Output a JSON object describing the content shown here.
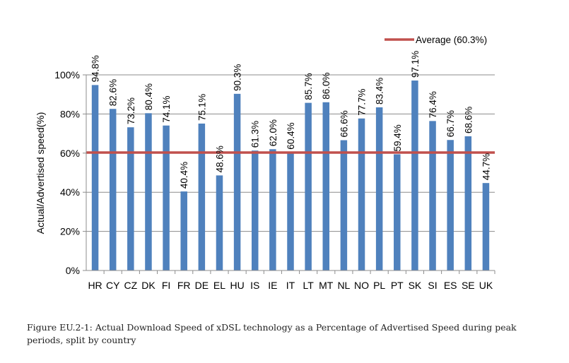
{
  "chart_data": {
    "type": "bar",
    "categories": [
      "HR",
      "CY",
      "CZ",
      "DK",
      "FI",
      "FR",
      "DE",
      "EL",
      "HU",
      "IS",
      "IE",
      "IT",
      "LT",
      "MT",
      "NL",
      "NO",
      "PL",
      "PT",
      "SK",
      "SI",
      "ES",
      "SE",
      "UK"
    ],
    "values": [
      94.8,
      82.6,
      73.2,
      80.4,
      74.1,
      40.4,
      75.1,
      48.6,
      90.3,
      61.3,
      62.0,
      60.4,
      85.7,
      86.0,
      66.6,
      77.7,
      83.4,
      59.4,
      97.1,
      76.4,
      66.7,
      68.6,
      44.7
    ],
    "value_labels": [
      "94.8%",
      "82.6%",
      "73.2%",
      "80.4%",
      "74.1%",
      "40.4%",
      "75.1%",
      "48.6%",
      "90.3%",
      "61.3%",
      "62.0%",
      "60.4%",
      "85.7%",
      "86.0%",
      "66.6%",
      "77.7%",
      "83.4%",
      "59.4%",
      "97.1%",
      "76.4%",
      "66.7%",
      "68.6%",
      "44.7%"
    ],
    "ylabel": "Actual/Advertised speed(%)",
    "xlabel": "",
    "ylim": [
      0,
      100
    ],
    "yticks": [
      0,
      20,
      40,
      60,
      80,
      100
    ],
    "ytick_labels": [
      "0%",
      "20%",
      "40%",
      "60%",
      "80%",
      "100%"
    ],
    "grid": true,
    "reference_line": {
      "label": "Average (60.3%)",
      "value": 60.3,
      "color": "#c0504d"
    },
    "legend_position": "top-right",
    "bar_color": "#4f81bd"
  },
  "caption": {
    "line1": "Figure EU.2-1: Actual Download Speed of xDSL technology as a Percentage of Advertised Speed during peak",
    "line2": "periods, split by country"
  }
}
